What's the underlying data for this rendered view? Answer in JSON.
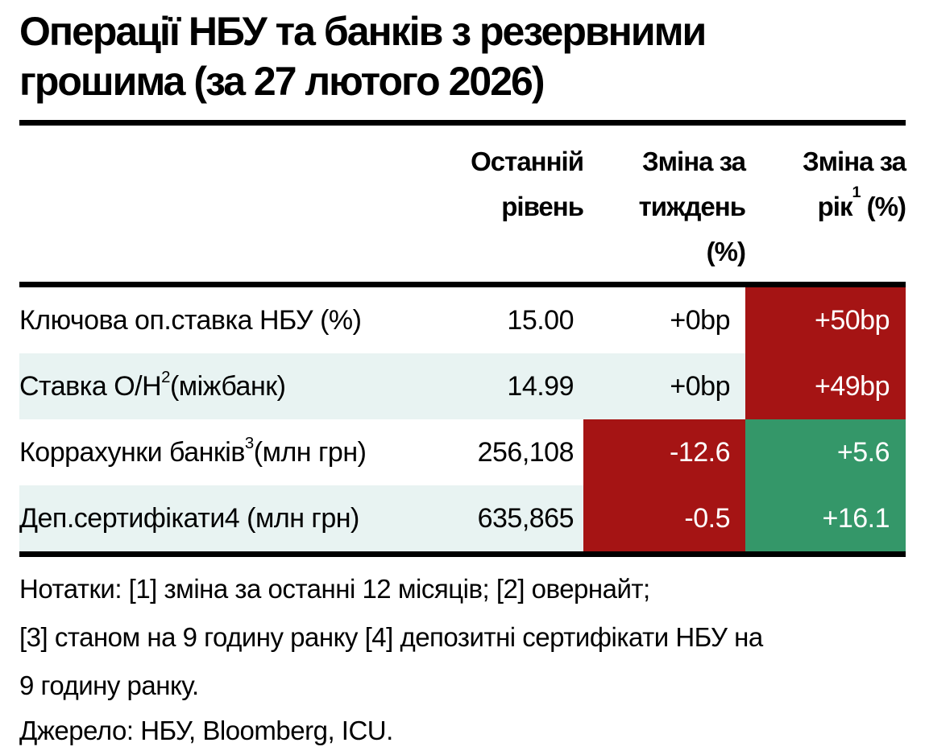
{
  "title": {
    "line1": "Операції НБУ та банків з резервними",
    "line2": "грошима (за 27 лютого 2026)"
  },
  "table": {
    "headers": {
      "level": {
        "line1": "Останній",
        "line2": "рівень"
      },
      "week": {
        "line1": "Зміна за",
        "line2": "тиждень",
        "line3": "(%)"
      },
      "year": {
        "line1": "Зміна за",
        "pre": "рік",
        "sup": "1",
        "post": " (%)"
      }
    },
    "rows": [
      {
        "label_pre": "Ключова оп.ставка НБУ (%)",
        "label_sup": "",
        "label_post": "",
        "level": "15.00",
        "week": "+0bp",
        "year": "+50bp"
      },
      {
        "label_pre": "Ставка О/Н",
        "label_sup": "2",
        "label_post": " (міжбанк)",
        "level": "14.99",
        "week": "+0bp",
        "year": "+49bp"
      },
      {
        "label_pre": "Коррахунки банків",
        "label_sup": "3",
        "label_post": " (млн грн)",
        "level": "256,108",
        "week": "-12.6",
        "year": "+5.6"
      },
      {
        "label_pre": "Деп.сертифікати4 (млн грн)",
        "label_sup": "",
        "label_post": "",
        "level": "635,865",
        "week": "-0.5",
        "year": "+16.1"
      }
    ]
  },
  "notes": {
    "line1": "Нотатки: [1] зміна за останні 12 місяців; [2] овернайт;",
    "line2": "[3] станом на 9 годину ранку [4] депозитні сертифікати НБУ на",
    "line3": "9 годину ранку."
  },
  "source": "Джерело: НБУ, Bloomberg, ICU.",
  "colors": {
    "red": "#a51414",
    "green": "#349769",
    "row_alt": "#e8f3f2"
  },
  "chart_data": {
    "type": "table",
    "title": "Операції НБУ та банків з резервними грошима (за 27 лютого 2026)",
    "columns": [
      "",
      "Останній рівень",
      "Зміна за тиждень (%)",
      "Зміна за рік1 (%)"
    ],
    "rows": [
      [
        "Ключова оп.ставка НБУ (%)",
        "15.00",
        "+0bp",
        "+50bp"
      ],
      [
        "Ставка О/Н2 (міжбанк)",
        "14.99",
        "+0bp",
        "+49bp"
      ],
      [
        "Коррахунки банків3 (млн грн)",
        "256,108",
        "-12.6",
        "+5.6"
      ],
      [
        "Деп.сертифікати4 (млн грн)",
        "635,865",
        "-0.5",
        "+16.1"
      ]
    ],
    "cell_highlights": [
      {
        "row": 0,
        "col": "Зміна за рік",
        "color": "red"
      },
      {
        "row": 1,
        "col": "Зміна за рік",
        "color": "red"
      },
      {
        "row": 2,
        "col": "Зміна за тиждень",
        "color": "red"
      },
      {
        "row": 2,
        "col": "Зміна за рік",
        "color": "green"
      },
      {
        "row": 3,
        "col": "Зміна за тиждень",
        "color": "red"
      },
      {
        "row": 3,
        "col": "Зміна за рік",
        "color": "green"
      }
    ],
    "notes": "Нотатки: [1] зміна за останні 12 місяців; [2] овернайт; [3] станом на 9 годину ранку [4] депозитні сертифікати НБУ на 9 годину ранку.",
    "source": "Джерело: НБУ, Bloomberg, ICU."
  }
}
